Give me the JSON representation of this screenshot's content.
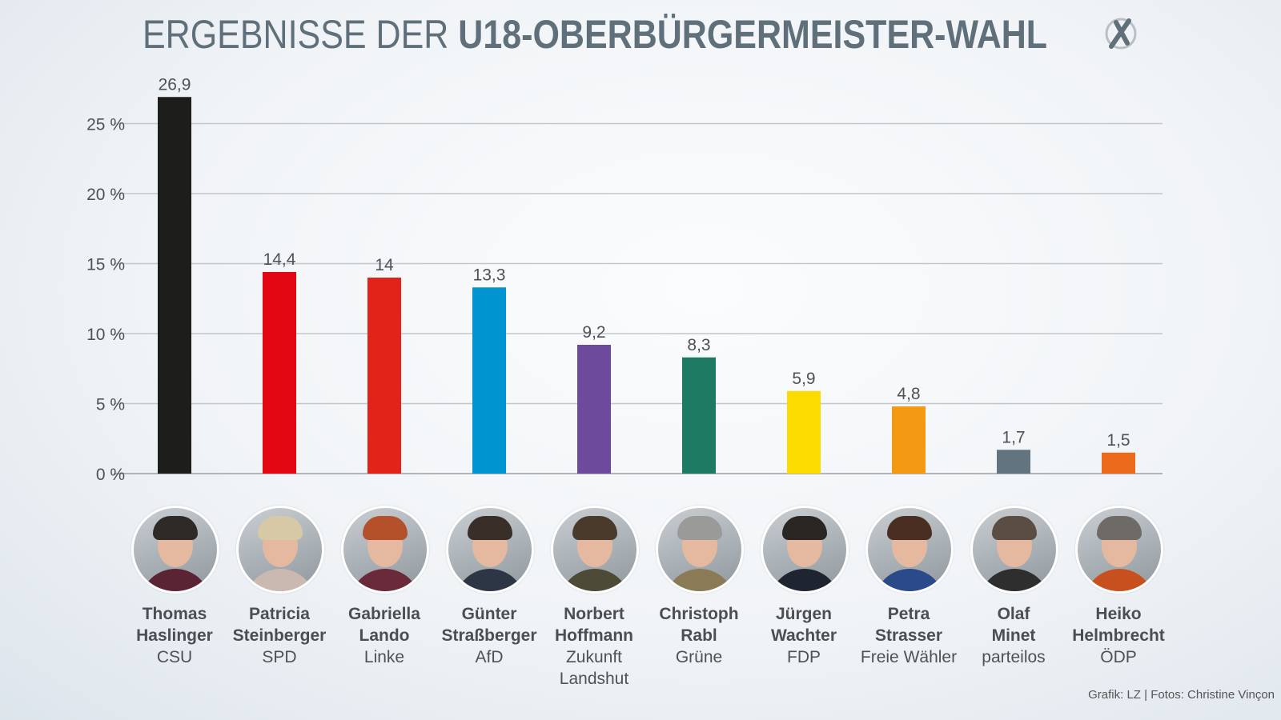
{
  "title": {
    "light": "ERGEBNISSE DER ",
    "bold": "U18-OBERBÜRGERMEISTER-WAHL"
  },
  "ballot_icon": "ballot-cross-icon",
  "credit": "Grafik: LZ | Fotos: Christine Vinçon",
  "chart_data": {
    "type": "bar",
    "title": "ERGEBNISSE DER U18-OBERBÜRGERMEISTER-WAHL",
    "xlabel": "",
    "ylabel": "",
    "ylim": [
      0,
      27
    ],
    "yticks": [
      0,
      5,
      10,
      15,
      20,
      25
    ],
    "ytick_labels": [
      "0 %",
      "5 %",
      "10 %",
      "15 %",
      "20 %",
      "25 %"
    ],
    "grid": true,
    "categories": [
      "Thomas Haslinger",
      "Patricia Steinberger",
      "Gabriella Lando",
      "Günter Straßberger",
      "Norbert Hoffmann",
      "Christoph Rabl",
      "Jürgen Wachter",
      "Petra Strasser",
      "Olaf Minet",
      "Heiko Helmbrecht"
    ],
    "values": [
      26.9,
      14.4,
      14,
      13.3,
      9.2,
      8.3,
      5.9,
      4.8,
      1.7,
      1.5
    ],
    "value_labels": [
      "26,9",
      "14,4",
      "14",
      "13,3",
      "9,2",
      "8,3",
      "5,9",
      "4,8",
      "1,7",
      "1,5"
    ],
    "colors": [
      "#1d1d1b",
      "#e30613",
      "#e2231a",
      "#0095d0",
      "#6e4a9c",
      "#1f7a63",
      "#fcdc00",
      "#f39a12",
      "#617480",
      "#ec6a1c"
    ]
  },
  "candidates": [
    {
      "first": "Thomas",
      "last": "Haslinger",
      "party": [
        "CSU"
      ],
      "hair": "#2e2a28",
      "cloth": "#5a2435"
    },
    {
      "first": "Patricia",
      "last": "Steinberger",
      "party": [
        "SPD"
      ],
      "hair": "#d8c9a6",
      "cloth": "#c9b9b0"
    },
    {
      "first": "Gabriella",
      "last": "Lando",
      "party": [
        "Linke"
      ],
      "hair": "#b4502a",
      "cloth": "#6b2a3a"
    },
    {
      "first": "Günter",
      "last": "Straßberger",
      "party": [
        "AfD"
      ],
      "hair": "#3a2e28",
      "cloth": "#2d3644"
    },
    {
      "first": "Norbert",
      "last": "Hoffmann",
      "party": [
        "Zukunft",
        "Landshut"
      ],
      "hair": "#4a3a2c",
      "cloth": "#4d4a38"
    },
    {
      "first": "Christoph",
      "last": "Rabl",
      "party": [
        "Grüne"
      ],
      "hair": "#9a9a98",
      "cloth": "#8a7a56"
    },
    {
      "first": "Jürgen",
      "last": "Wachter",
      "party": [
        "FDP"
      ],
      "hair": "#2a2624",
      "cloth": "#1f2530"
    },
    {
      "first": "Petra",
      "last": "Strasser",
      "party": [
        "Freie Wähler"
      ],
      "hair": "#4a2e22",
      "cloth": "#2a4a8a"
    },
    {
      "first": "Olaf",
      "last": "Minet",
      "party": [
        "parteilos"
      ],
      "hair": "#5a4e44",
      "cloth": "#2e2e2e"
    },
    {
      "first": "Heiko",
      "last": "Helmbrecht",
      "party": [
        "ÖDP"
      ],
      "hair": "#6e6a66",
      "cloth": "#c8501e"
    }
  ]
}
